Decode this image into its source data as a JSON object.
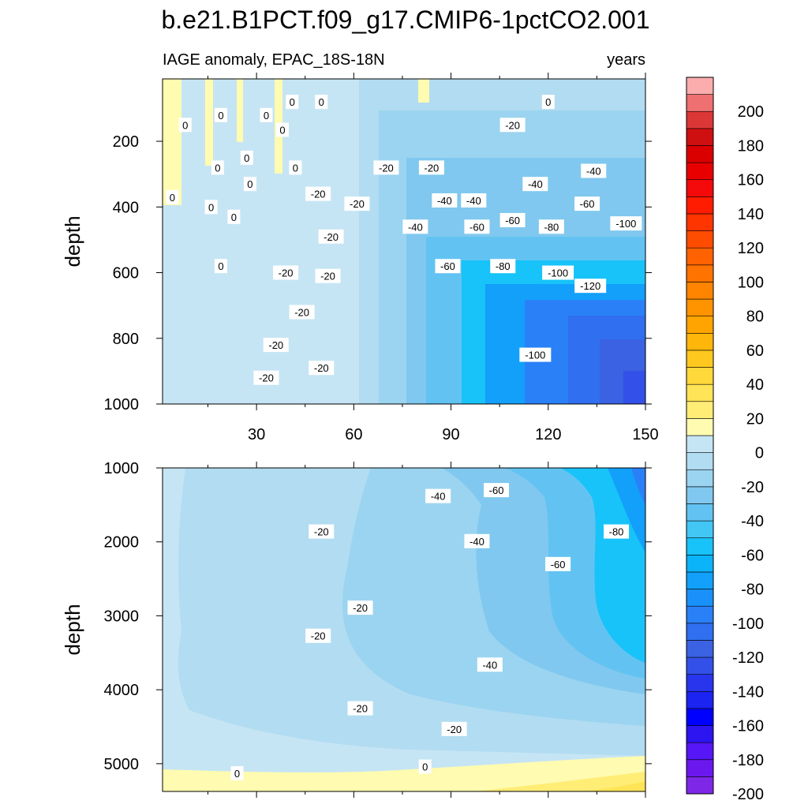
{
  "title": "b.e21.B1PCT.f09_g17.CMIP6-1pctCO2.001",
  "left_subtitle": "IAGE anomaly, EPAC_18S-18N",
  "right_subtitle": "years",
  "chart_data": [
    {
      "type": "heatmap",
      "panel": "upper",
      "ylabel": "depth",
      "xlim": [
        1,
        150
      ],
      "ylim": [
        1000,
        10
      ],
      "x_ticks": [
        30,
        60,
        90,
        120,
        150
      ],
      "y_ticks": [
        200,
        400,
        600,
        800,
        1000
      ],
      "x_tick_labels": [
        "30",
        "60",
        "90",
        "120",
        "150"
      ],
      "y_tick_labels": [
        "200",
        "400",
        "600",
        "800",
        "1000"
      ],
      "contour_labels": [
        {
          "x": 8,
          "y": 150,
          "text": "0"
        },
        {
          "x": 4,
          "y": 370,
          "text": "0"
        },
        {
          "x": 19,
          "y": 120,
          "text": "0"
        },
        {
          "x": 18,
          "y": 280,
          "text": "0"
        },
        {
          "x": 16,
          "y": 400,
          "text": "0"
        },
        {
          "x": 23,
          "y": 430,
          "text": "0"
        },
        {
          "x": 19,
          "y": 580,
          "text": "0"
        },
        {
          "x": 27,
          "y": 250,
          "text": "0"
        },
        {
          "x": 28,
          "y": 330,
          "text": "0"
        },
        {
          "x": 33,
          "y": 120,
          "text": "0"
        },
        {
          "x": 38,
          "y": 165,
          "text": "0"
        },
        {
          "x": 41,
          "y": 80,
          "text": "0"
        },
        {
          "x": 42,
          "y": 280,
          "text": "0"
        },
        {
          "x": 50,
          "y": 80,
          "text": "0"
        },
        {
          "x": 120,
          "y": 80,
          "text": "0"
        },
        {
          "x": 49,
          "y": 360,
          "text": "-20"
        },
        {
          "x": 53,
          "y": 490,
          "text": "-20"
        },
        {
          "x": 61,
          "y": 390,
          "text": "-20"
        },
        {
          "x": 39,
          "y": 600,
          "text": "-20"
        },
        {
          "x": 52,
          "y": 610,
          "text": "-20"
        },
        {
          "x": 44,
          "y": 720,
          "text": "-20"
        },
        {
          "x": 36,
          "y": 820,
          "text": "-20"
        },
        {
          "x": 33,
          "y": 920,
          "text": "-20"
        },
        {
          "x": 50,
          "y": 890,
          "text": "-20"
        },
        {
          "x": 70,
          "y": 280,
          "text": "-20"
        },
        {
          "x": 84,
          "y": 280,
          "text": "-20"
        },
        {
          "x": 109,
          "y": 150,
          "text": "-20"
        },
        {
          "x": 79,
          "y": 460,
          "text": "-40"
        },
        {
          "x": 88,
          "y": 380,
          "text": "-40"
        },
        {
          "x": 97,
          "y": 380,
          "text": "-40"
        },
        {
          "x": 116,
          "y": 330,
          "text": "-40"
        },
        {
          "x": 134,
          "y": 290,
          "text": "-40"
        },
        {
          "x": 98,
          "y": 460,
          "text": "-60"
        },
        {
          "x": 89,
          "y": 580,
          "text": "-60"
        },
        {
          "x": 109,
          "y": 440,
          "text": "-60"
        },
        {
          "x": 132,
          "y": 390,
          "text": "-60"
        },
        {
          "x": 106,
          "y": 580,
          "text": "-80"
        },
        {
          "x": 121,
          "y": 460,
          "text": "-80"
        },
        {
          "x": 123,
          "y": 600,
          "text": "-100"
        },
        {
          "x": 116,
          "y": 850,
          "text": "-100"
        },
        {
          "x": 144,
          "y": 450,
          "text": "-100"
        },
        {
          "x": 133,
          "y": 640,
          "text": "-120"
        }
      ]
    },
    {
      "type": "heatmap",
      "panel": "lower",
      "ylabel": "depth",
      "xlim": [
        1,
        150
      ],
      "ylim": [
        5375,
        1000
      ],
      "x_ticks": [
        30,
        60,
        90,
        120,
        150
      ],
      "y_ticks": [
        1000,
        2000,
        3000,
        4000,
        5000
      ],
      "y_tick_labels": [
        "1000",
        "2000",
        "3000",
        "4000",
        "5000"
      ],
      "contour_labels": [
        {
          "x": 86,
          "y": 1380,
          "text": "-40"
        },
        {
          "x": 104,
          "y": 1300,
          "text": "-60"
        },
        {
          "x": 50,
          "y": 1860,
          "text": "-20"
        },
        {
          "x": 98,
          "y": 1990,
          "text": "-40"
        },
        {
          "x": 141,
          "y": 1860,
          "text": "-80"
        },
        {
          "x": 123,
          "y": 2300,
          "text": "-60"
        },
        {
          "x": 62,
          "y": 2890,
          "text": "-20"
        },
        {
          "x": 49,
          "y": 3270,
          "text": "-20"
        },
        {
          "x": 102,
          "y": 3660,
          "text": "-40"
        },
        {
          "x": 62,
          "y": 4250,
          "text": "-20"
        },
        {
          "x": 91,
          "y": 4530,
          "text": "-20"
        },
        {
          "x": 24,
          "y": 5130,
          "text": "0"
        },
        {
          "x": 82,
          "y": 5040,
          "text": "0"
        }
      ]
    }
  ],
  "colorbar": {
    "levels": [
      -210,
      -200,
      -190,
      -180,
      -170,
      -160,
      -150,
      -140,
      -130,
      -120,
      -110,
      -100,
      -90,
      -80,
      -70,
      -60,
      -50,
      -40,
      -30,
      -20,
      -10,
      0,
      10,
      20,
      30,
      40,
      50,
      60,
      70,
      80,
      90,
      100,
      110,
      120,
      130,
      140,
      150,
      160,
      170,
      180,
      190,
      200,
      210
    ],
    "colors": [
      "#7f27e6",
      "#6b18ef",
      "#5716f5",
      "#2c15f0",
      "#0000ff",
      "#1c24f1",
      "#2835ec",
      "#3351e8",
      "#3a62e2",
      "#2f6ff0",
      "#2a80f7",
      "#1a91fa",
      "#12a0fa",
      "#0bb3f9",
      "#17c3f8",
      "#42c7f5",
      "#62c3f2",
      "#80c8ef",
      "#9bd4f0",
      "#b2dcf1",
      "#c6e5f4",
      "#fffbb0",
      "#ffed76",
      "#ffe457",
      "#ffd83a",
      "#ffc81e",
      "#ffb60a",
      "#ffa400",
      "#ff9300",
      "#ff8400",
      "#ff7300",
      "#ff6200",
      "#ff4c00",
      "#ff3500",
      "#ff1c00",
      "#f40a0a",
      "#e80000",
      "#da0000",
      "#cf1010",
      "#dc3737",
      "#ee7070",
      "#fbadad"
    ],
    "tick_labels": [
      "200",
      "180",
      "160",
      "140",
      "120",
      "100",
      "80",
      "60",
      "40",
      "20",
      "0",
      "-20",
      "-40",
      "-60",
      "-80",
      "-100",
      "-120",
      "-140",
      "-160",
      "-180",
      "-200"
    ]
  }
}
